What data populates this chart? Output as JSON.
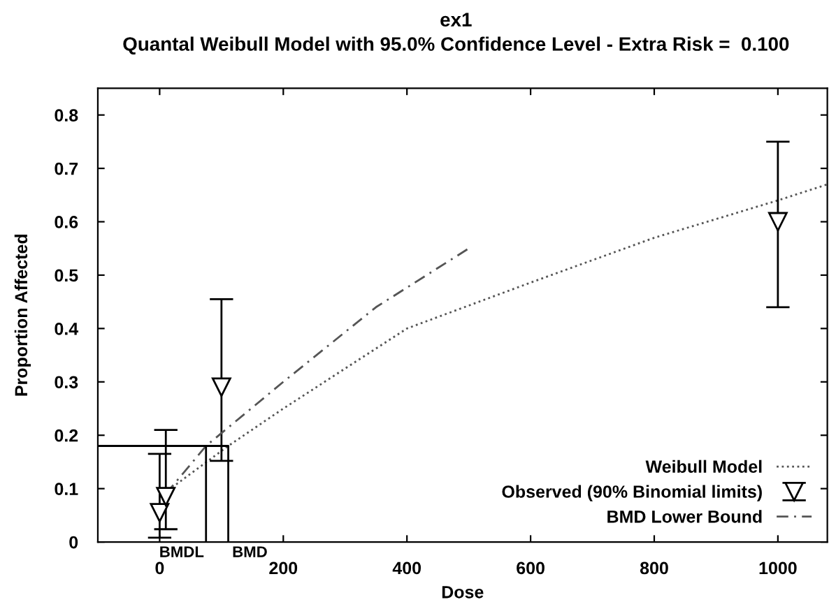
{
  "chart_data": {
    "type": "scatter",
    "title": "ex1",
    "subtitle": "Quantal Weibull Model with 95.0% Confidence Level - Extra Risk =  0.100",
    "xlabel": "Dose",
    "ylabel": "Proportion Affected",
    "xlim": [
      -100,
      1080
    ],
    "ylim": [
      0,
      0.85
    ],
    "xticks": [
      0,
      200,
      400,
      600,
      800,
      1000
    ],
    "yticks": [
      0,
      0.1,
      0.2,
      0.3,
      0.4,
      0.5,
      0.6,
      0.7,
      0.8
    ],
    "grid": false,
    "legend": "bottom right",
    "series": [
      {
        "name": "Weibull Model",
        "type": "line",
        "color": "#555555",
        "line_style": "dotted",
        "marker": "none",
        "x": [
          0,
          111,
          200,
          400,
          600,
          800,
          1000,
          1080
        ],
        "values": [
          0.085,
          0.18,
          0.25,
          0.4,
          0.486,
          0.57,
          0.64,
          0.67
        ]
      },
      {
        "name": "Observed (90% Binomial limits)",
        "color": "#000000",
        "marker": "triangle",
        "x": [
          0,
          10,
          100,
          1000
        ],
        "values": [
          0.055,
          0.085,
          0.29,
          0.6
        ],
        "errors": [
          [
            0.008,
            0.165
          ],
          [
            0.024,
            0.21
          ],
          [
            0.152,
            0.455
          ],
          [
            0.44,
            0.75
          ]
        ]
      },
      {
        "name": "BMD Lower Bound",
        "type": "line",
        "color": "#555555",
        "line_style": "dashed",
        "marker": "none",
        "x": [
          10,
          75,
          200,
          350,
          500
        ],
        "values": [
          0.09,
          0.18,
          0.3,
          0.44,
          0.55
        ]
      },
      {
        "type": "line",
        "color": "#000000",
        "line_style": "solid",
        "marker": "none",
        "x": [
          -100,
          111,
          111
        ],
        "values": [
          0.18,
          0.18,
          0
        ]
      },
      {
        "type": "line",
        "color": "#000000",
        "line_style": "solid",
        "marker": "none",
        "x": [
          75,
          75
        ],
        "values": [
          0.18,
          0
        ]
      }
    ],
    "annotations": [
      {
        "text": "BMDL",
        "x": 75,
        "y": 0
      },
      {
        "text": "BMD",
        "x": 111,
        "y": 0
      }
    ]
  }
}
